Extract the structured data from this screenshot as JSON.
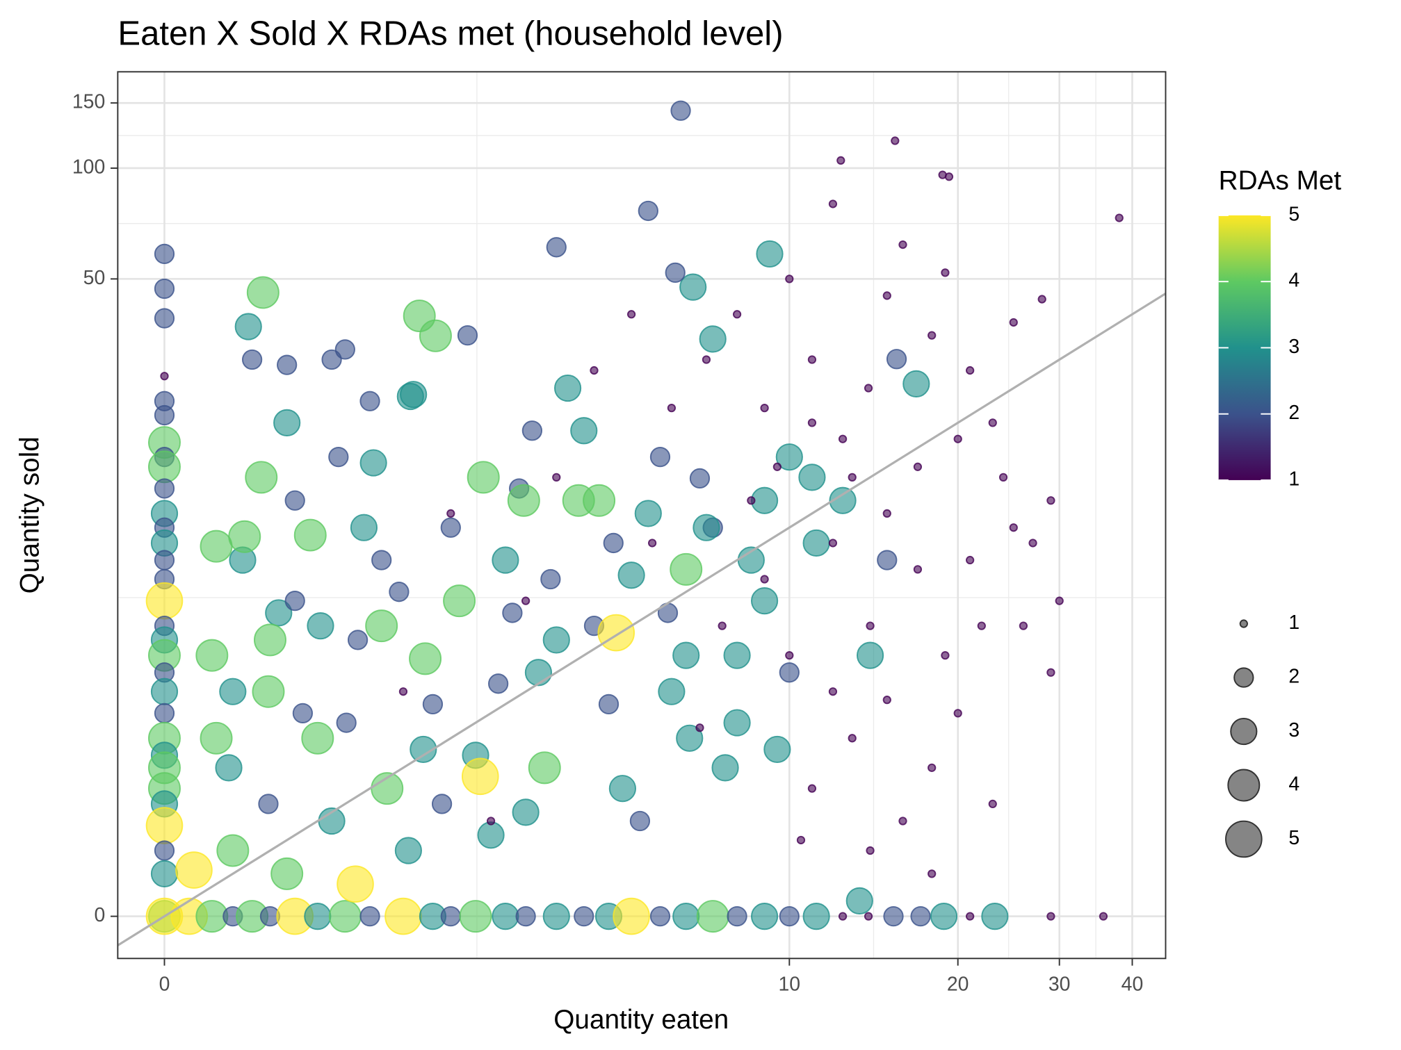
{
  "chart_data": {
    "type": "scatter",
    "title": "Eaten X Sold X RDAs met (household level)",
    "x_label": "Quantity eaten",
    "y_label": "Quantity sold",
    "legend_title": "RDAs Met",
    "scale": "log1p",
    "grid": true,
    "reference_line": "identity",
    "alpha": 0.6,
    "colorscale": [
      "#440154",
      "#3b528b",
      "#21918c",
      "#5ec962",
      "#fde725"
    ],
    "color_ticks": [
      1,
      2,
      3,
      4,
      5
    ],
    "size_ticks": [
      1,
      2,
      3,
      4,
      5
    ],
    "xlim": [
      -0.164,
      45.6
    ],
    "ylim": [
      -0.229,
      182
    ],
    "xticks": [
      0,
      10,
      20,
      30,
      40
    ],
    "yticks": [
      0,
      50,
      100,
      150
    ],
    "x": [
      0,
      0,
      0,
      0,
      0,
      0,
      0,
      0,
      0,
      0,
      0,
      0,
      0,
      0,
      0,
      0,
      0,
      0,
      0,
      0,
      0,
      0,
      0,
      0,
      0,
      0,
      0,
      0,
      0,
      0,
      0,
      0.1,
      0.2,
      0.3,
      0.4,
      0.5,
      0.65,
      0.8,
      1,
      1.2,
      1.5,
      1.8,
      2,
      2.3,
      2.7,
      3,
      3.5,
      4,
      4.5,
      5,
      5.7,
      6.4,
      7.2,
      8,
      9,
      10,
      11.2,
      12.5,
      13.9,
      15.4,
      17.2,
      18.9,
      21,
      23.2,
      29,
      35.7,
      13.4,
      0.35,
      0.49,
      0.65,
      0.82,
      1.01,
      1.23,
      1.46,
      1.72,
      2,
      2.3,
      2.7,
      3.1,
      3.5,
      3.9,
      4.5,
      5,
      5.7,
      6.4,
      7.2,
      8,
      9,
      10,
      11.2,
      0.22,
      0.3,
      0.49,
      0.6,
      0.75,
      0.9,
      1.1,
      1.35,
      1.6,
      1.8,
      2.1,
      2.5,
      2.9,
      3.3,
      3.7,
      4.2,
      4.8,
      5.4,
      6,
      6.8,
      7.6,
      8.5,
      9.5,
      0.4,
      0.55,
      0.7,
      1,
      1.3,
      1.55,
      2.2,
      2.6,
      3,
      3.4,
      4,
      4.6,
      5.2,
      5.9,
      6.5,
      1.9,
      0.28,
      0.45,
      0.5,
      1.15,
      0.65,
      1.3,
      2.4,
      3.2,
      0.3,
      0.8,
      0.6,
      1.7,
      4.3,
      0.95,
      2.8,
      2.97,
      6.4,
      0.22,
      0.36,
      0.2,
      7,
      8,
      11,
      10,
      12.5,
      15,
      14,
      9,
      0.9,
      0.6,
      1.2,
      4.66,
      2.36,
      1.08,
      0.12,
      8,
      9,
      10,
      11,
      12,
      12.5,
      13.9,
      15,
      16,
      17,
      18,
      19,
      21,
      23,
      25,
      28,
      29,
      30,
      29,
      25,
      22,
      20,
      18,
      16,
      14,
      13,
      11,
      10,
      9,
      8.5,
      12,
      14,
      15,
      17,
      19,
      21,
      24,
      27,
      26,
      20,
      13,
      11,
      9.5,
      7,
      6,
      5,
      4.2,
      3.5,
      7.5,
      6.8,
      10.5,
      12,
      23,
      18,
      5.5,
      3,
      2,
      1.5,
      2.5,
      15,
      6.25,
      5.4,
      3.5,
      6.6,
      6.1,
      9.2,
      15.6,
      16.9,
      7.2,
      1.57,
      0.46,
      0.38,
      1.66,
      1.83,
      15.5,
      12.4,
      18.8,
      19.3,
      38,
      0
    ],
    "y": [
      58.5,
      47,
      39,
      27,
      23,
      21,
      17.6,
      16,
      15,
      13,
      11,
      10,
      9,
      8,
      7,
      6,
      5,
      4.5,
      4,
      3.5,
      3,
      2.5,
      2,
      1.7,
      1.5,
      1.2,
      1,
      0.75,
      0.5,
      0.3,
      0,
      0,
      0,
      0,
      0,
      0,
      0,
      0,
      0,
      0,
      0,
      0,
      0,
      0,
      0,
      0,
      0,
      0,
      0,
      0,
      0,
      0,
      0,
      0,
      0,
      0,
      0,
      0,
      0,
      0,
      0,
      0,
      0,
      0,
      0,
      0,
      0.1,
      8,
      3,
      12,
      5,
      2.3,
      15.4,
      6.4,
      3.9,
      10,
      1.7,
      8,
      19,
      4.5,
      12,
      2.7,
      7.2,
      16,
      4,
      10,
      2.3,
      6,
      3.5,
      9,
      2,
      0.5,
      1,
      20,
      9.5,
      0.8,
      4.5,
      1.2,
      24,
      2.7,
      6,
      0.65,
      13,
      1.5,
      25,
      5,
      1.2,
      11,
      3,
      13.9,
      1.5,
      8,
      1.8,
      30,
      5.5,
      2.5,
      32,
      8,
      0.5,
      35,
      3.2,
      0.9,
      7,
      19,
      9,
      0.8,
      5.5,
      2,
      1,
      1.5,
      14,
      4.5,
      10,
      6,
      5,
      14,
      3.5,
      3,
      2,
      0.3,
      1.8,
      12,
      16,
      5.5,
      12,
      7.5,
      8.8,
      9.4,
      4,
      10,
      4,
      14,
      16,
      12,
      8,
      4,
      12,
      30,
      29,
      23,
      4.75,
      1.37,
      0.22,
      0.33,
      40,
      22,
      50,
      30,
      80,
      18,
      25,
      45,
      62,
      15,
      35,
      52,
      28,
      20,
      38,
      44,
      12,
      6,
      3.5,
      10,
      5,
      2.5,
      1.5,
      0.8,
      0.5,
      2,
      1.2,
      4,
      7,
      12,
      9,
      5,
      11,
      7.5,
      4,
      8,
      14,
      9,
      5,
      18,
      14,
      20,
      15,
      30,
      22,
      40,
      28,
      14,
      5,
      2.2,
      0.6,
      3,
      1,
      0.3,
      9,
      6,
      11,
      3,
      0.8,
      2.8,
      143,
      76.6,
      61,
      47.5,
      52,
      58.5,
      30.1,
      25.7,
      34.2,
      23.7,
      45.9,
      37,
      39.6,
      34.9,
      118.6,
      104.9,
      95.9,
      94.8,
      73.3,
      0
    ],
    "rdas_met": [
      2,
      2,
      2,
      1,
      2,
      2,
      4,
      2,
      4,
      2,
      3,
      2,
      3,
      2,
      2,
      5,
      2,
      3,
      4,
      2,
      3,
      2,
      4,
      3,
      4,
      4,
      3,
      5,
      2,
      3,
      4,
      5,
      4,
      2,
      4,
      2,
      5,
      3,
      4,
      2,
      5,
      3,
      2,
      4,
      3,
      2,
      3,
      2,
      3,
      5,
      2,
      3,
      4,
      2,
      3,
      2,
      3,
      1,
      1,
      2,
      2,
      3,
      1,
      3,
      1,
      1,
      3,
      3,
      4,
      2,
      3,
      2,
      3,
      2,
      4,
      2,
      3,
      3,
      2,
      3,
      4,
      2,
      3,
      2,
      3,
      2,
      3,
      3,
      2,
      3,
      4,
      4,
      2,
      3,
      4,
      3,
      2,
      4,
      3,
      2,
      4,
      3,
      2,
      4,
      3,
      2,
      3,
      3,
      3,
      2,
      3,
      3,
      3,
      2,
      3,
      2,
      2,
      2,
      3,
      2,
      2,
      3,
      2,
      3,
      2,
      2,
      2,
      3,
      2,
      3,
      4,
      4,
      3,
      2,
      4,
      4,
      3,
      3,
      4,
      4,
      3,
      4,
      2,
      2,
      4,
      4,
      4,
      4,
      4,
      3,
      3,
      3,
      3,
      3,
      2,
      3,
      3,
      2,
      2,
      2,
      5,
      5,
      5,
      5,
      1,
      1,
      1,
      1,
      1,
      1,
      1,
      1,
      1,
      1,
      1,
      1,
      1,
      1,
      1,
      1,
      1,
      1,
      1,
      1,
      1,
      1,
      1,
      1,
      1,
      1,
      1,
      1,
      1,
      1,
      1,
      1,
      1,
      1,
      1,
      1,
      1,
      1,
      1,
      1,
      1,
      1,
      1,
      1,
      1,
      1,
      1,
      1,
      1,
      1,
      1,
      1,
      1,
      1,
      1,
      1,
      1,
      1,
      1,
      1,
      2,
      2,
      2,
      3,
      2,
      3,
      2,
      3,
      3,
      3,
      4,
      3,
      4,
      4,
      1,
      1,
      1,
      1,
      1,
      5
    ]
  }
}
